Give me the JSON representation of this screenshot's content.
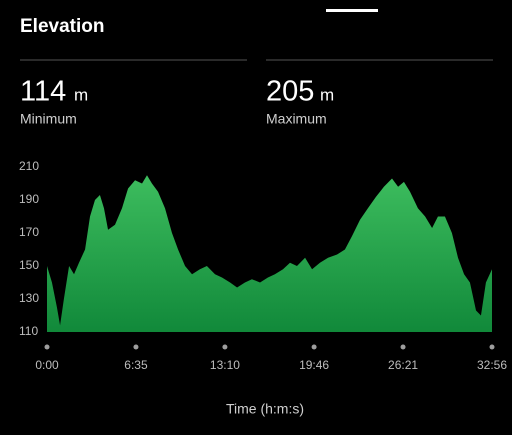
{
  "header": {
    "title": "Elevation"
  },
  "stats": [
    {
      "value": 114,
      "unit": "m",
      "label": "Minimum"
    },
    {
      "value": 205,
      "unit": "m",
      "label": "Maximum"
    }
  ],
  "chart_data": {
    "type": "area",
    "x_label": "Time (h:m:s)",
    "color": "#3dbd5e",
    "x": [
      0,
      22,
      44,
      58,
      75,
      98,
      120,
      142,
      169,
      191,
      213,
      235,
      253,
      271,
      302,
      333,
      360,
      391,
      422,
      444,
      466,
      493,
      524,
      555,
      582,
      613,
      644,
      679,
      710,
      746,
      777,
      813,
      844,
      879,
      910,
      946,
      981,
      1012,
      1048,
      1079,
      1110,
      1146,
      1177,
      1212,
      1248,
      1288,
      1323,
      1354,
      1390,
      1425,
      1461,
      1496,
      1532,
      1559,
      1585,
      1612,
      1647,
      1679,
      1710,
      1736,
      1767,
      1798,
      1825,
      1852,
      1878,
      1905,
      1927,
      1949,
      1976
    ],
    "series": [
      {
        "values": [
          150,
          140,
          125,
          114,
          130,
          150,
          145,
          152,
          160,
          180,
          190,
          193,
          185,
          172,
          175,
          185,
          197,
          202,
          200,
          205,
          200,
          195,
          185,
          170,
          160,
          150,
          145,
          148,
          150,
          145,
          143,
          140,
          137,
          140,
          142,
          140,
          143,
          145,
          148,
          152,
          150,
          155,
          148,
          152,
          155,
          157,
          160,
          168,
          178,
          185,
          192,
          198,
          203,
          198,
          201,
          195,
          185,
          180,
          173,
          180,
          180,
          170,
          155,
          145,
          140,
          123,
          120,
          140,
          148
        ]
      }
    ],
    "xlim": [
      0,
      1976
    ],
    "xticks": [
      {
        "value": 0,
        "label": "0:00"
      },
      {
        "value": 395,
        "label": "6:35"
      },
      {
        "value": 790,
        "label": "13:10"
      },
      {
        "value": 1186,
        "label": "19:46"
      },
      {
        "value": 1581,
        "label": "26:21"
      },
      {
        "value": 1976,
        "label": "32:56"
      }
    ],
    "ylim": [
      110,
      210
    ],
    "yticks": [
      110,
      130,
      150,
      170,
      190,
      210
    ]
  }
}
